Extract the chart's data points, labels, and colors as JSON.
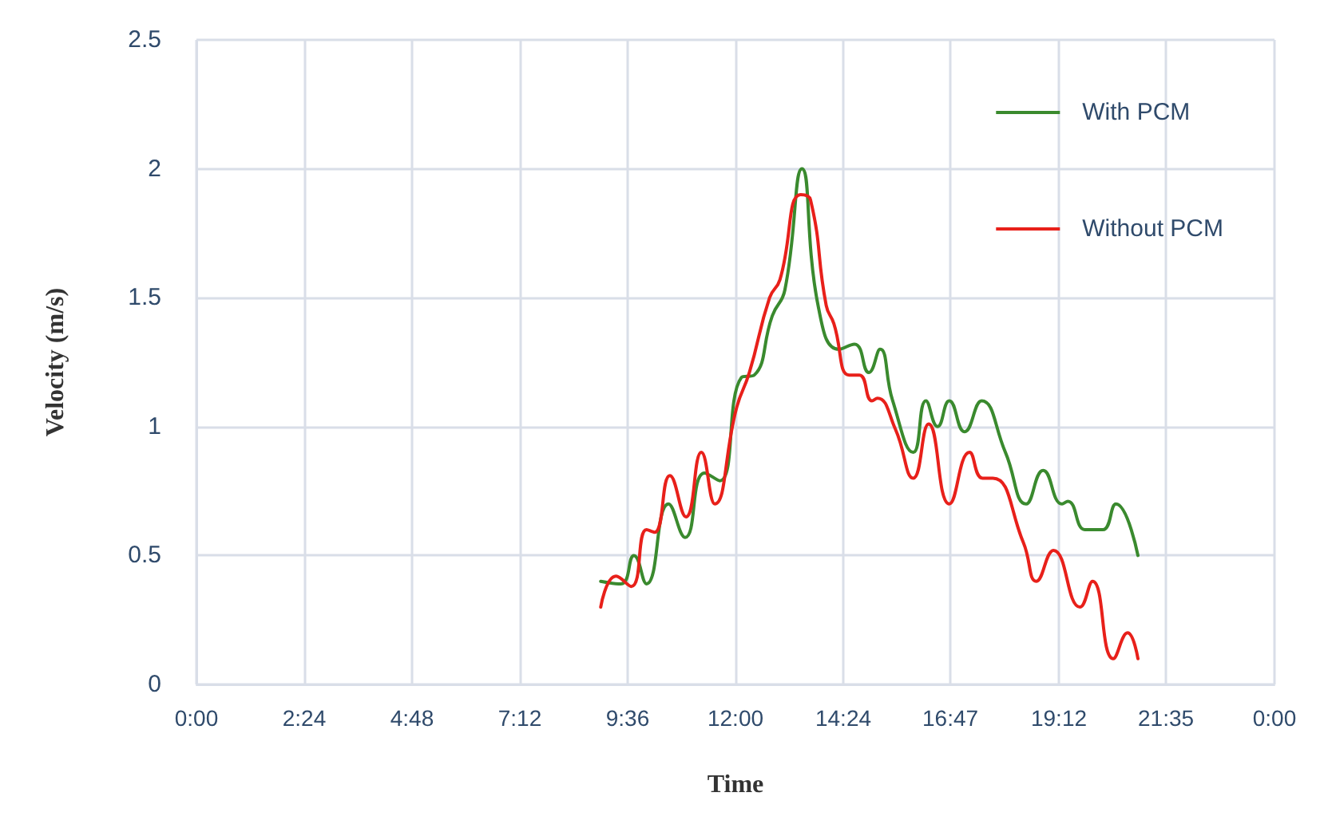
{
  "chart_data": {
    "type": "line",
    "xlabel": "Time",
    "ylabel": "Velocity (m/s)",
    "xlim": [
      0,
      24
    ],
    "xticks": [
      {
        "value": 0,
        "label": "0:00"
      },
      {
        "value": 2.4,
        "label": "2:24"
      },
      {
        "value": 4.8,
        "label": "4:48"
      },
      {
        "value": 7.2,
        "label": "7:12"
      },
      {
        "value": 9.6,
        "label": "9:36"
      },
      {
        "value": 12,
        "label": "12:00"
      },
      {
        "value": 14.4,
        "label": "14:24"
      },
      {
        "value": 16.7833,
        "label": "16:47"
      },
      {
        "value": 19.2,
        "label": "19:12"
      },
      {
        "value": 21.5833,
        "label": "21:35"
      },
      {
        "value": 24,
        "label": "0:00"
      }
    ],
    "ylim": [
      0,
      2.5
    ],
    "yticks": [
      0,
      0.5,
      1,
      1.5,
      2,
      2.5
    ],
    "grid": true,
    "legend": "top right",
    "marker": "none",
    "line_style": "solid",
    "series": [
      {
        "name": "With PCM",
        "color": "#3a8a2e",
        "x": [
          9.0,
          9.45,
          9.74,
          10.02,
          10.51,
          10.88,
          11.31,
          11.65,
          12.13,
          12.42,
          12.82,
          13.1,
          13.48,
          13.85,
          14.3,
          14.65,
          14.97,
          15.22,
          15.5,
          15.96,
          16.24,
          16.5,
          16.76,
          17.1,
          17.48,
          18.01,
          18.47,
          18.85,
          19.27,
          19.4,
          19.78,
          19.95,
          20.18,
          20.47,
          20.96
        ],
        "values": [
          0.4,
          0.39,
          0.5,
          0.39,
          0.7,
          0.57,
          0.82,
          0.79,
          1.19,
          1.2,
          1.43,
          1.53,
          2.0,
          1.46,
          1.3,
          1.32,
          1.21,
          1.3,
          1.1,
          0.9,
          1.1,
          1.0,
          1.1,
          0.98,
          1.1,
          0.9,
          0.7,
          0.83,
          0.7,
          0.71,
          0.6,
          0.6,
          0.6,
          0.7,
          0.5
        ]
      },
      {
        "name": "Without PCM",
        "color": "#e8201a",
        "x": [
          9.0,
          9.34,
          9.68,
          10.02,
          10.2,
          10.54,
          10.9,
          11.24,
          11.54,
          12.02,
          12.31,
          12.76,
          12.99,
          13.45,
          13.67,
          14.02,
          14.19,
          14.53,
          14.76,
          15.04,
          15.16,
          15.56,
          15.96,
          16.3,
          16.76,
          17.21,
          17.5,
          17.73,
          18.41,
          18.7,
          19.08,
          19.67,
          19.95,
          20.41,
          20.73,
          20.96
        ],
        "values": [
          0.3,
          0.42,
          0.38,
          0.6,
          0.59,
          0.81,
          0.65,
          0.9,
          0.7,
          1.07,
          1.21,
          1.5,
          1.57,
          1.9,
          1.88,
          1.47,
          1.4,
          1.2,
          1.2,
          1.1,
          1.11,
          0.99,
          0.8,
          1.01,
          0.7,
          0.9,
          0.8,
          0.8,
          0.55,
          0.4,
          0.52,
          0.3,
          0.4,
          0.1,
          0.2,
          0.1
        ]
      }
    ]
  }
}
